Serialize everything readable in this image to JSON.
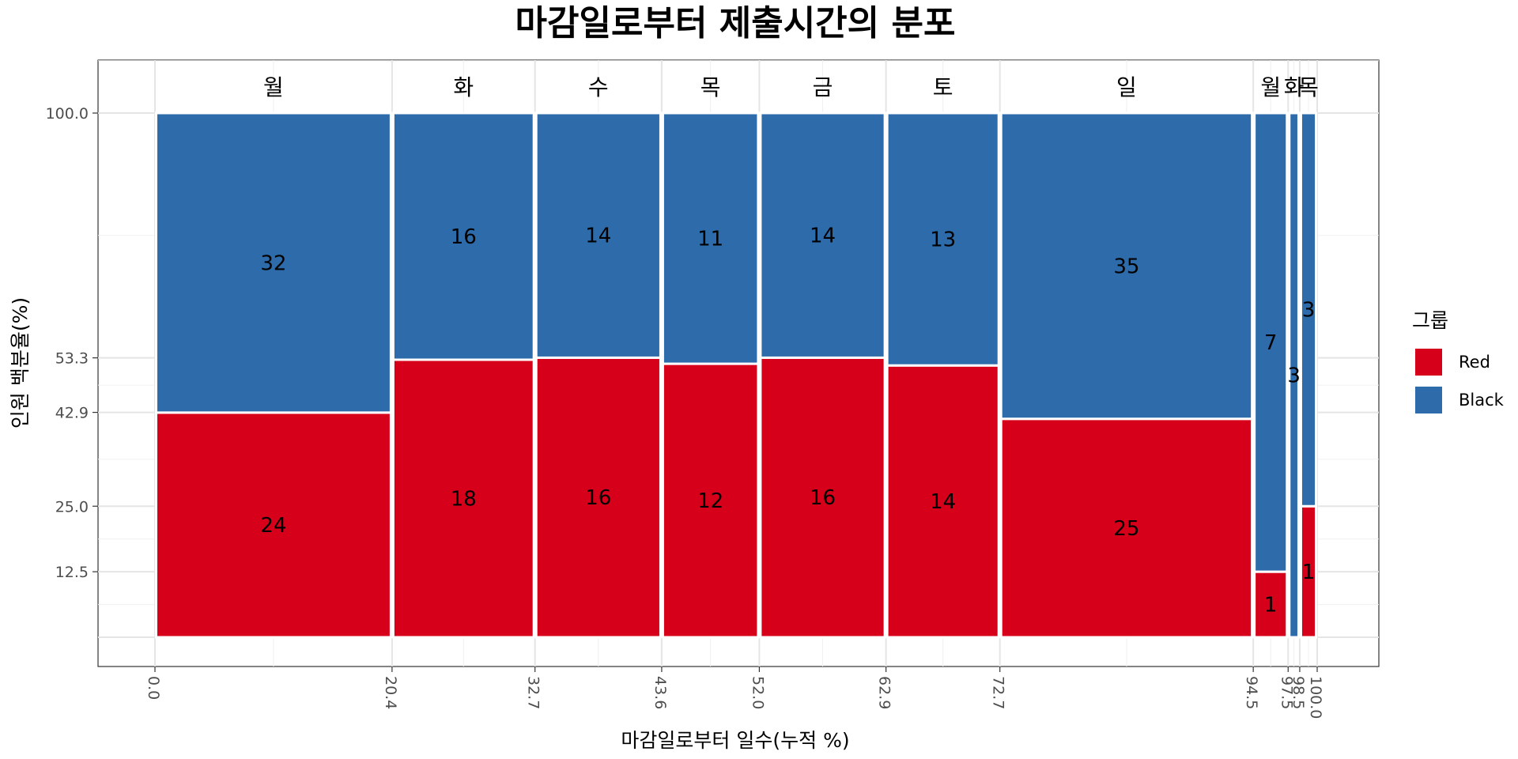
{
  "chart_data": {
    "type": "mosaic",
    "title": "마감일로부터 제출시간의 분포",
    "xlabel": "마감일로부터 일수(누적 %)",
    "ylabel": "인원 백분율(%)",
    "legend": {
      "title": "그룹",
      "position": "right",
      "entries": [
        {
          "name": "Red",
          "color": "#D7001A"
        },
        {
          "name": "Black",
          "color": "#2E6BAA"
        }
      ]
    },
    "x_ticks": [
      "0.0",
      "20.4",
      "32.7",
      "43.6",
      "52.0",
      "62.9",
      "72.7",
      "94.5",
      "97.5",
      "98.5",
      "100.0"
    ],
    "y_ticks": [
      "12.5",
      "25.0",
      "42.9",
      "53.3",
      "100.0"
    ],
    "xlim": [
      0,
      100
    ],
    "ylim": [
      0,
      100
    ],
    "grid": true,
    "columns": [
      {
        "label": "월",
        "x0": 0.0,
        "x1": 20.4,
        "red": 24,
        "black": 32
      },
      {
        "label": "화",
        "x0": 20.4,
        "x1": 32.7,
        "red": 18,
        "black": 16
      },
      {
        "label": "수",
        "x0": 32.7,
        "x1": 43.6,
        "red": 16,
        "black": 14
      },
      {
        "label": "목",
        "x0": 43.6,
        "x1": 52.0,
        "red": 12,
        "black": 11
      },
      {
        "label": "금",
        "x0": 52.0,
        "x1": 62.9,
        "red": 16,
        "black": 14
      },
      {
        "label": "토",
        "x0": 62.9,
        "x1": 72.7,
        "red": 14,
        "black": 13
      },
      {
        "label": "일",
        "x0": 72.7,
        "x1": 94.5,
        "red": 25,
        "black": 35
      },
      {
        "label": "월",
        "x0": 94.5,
        "x1": 97.5,
        "red": 1,
        "black": 7
      },
      {
        "label": "화",
        "x0": 97.5,
        "x1": 98.5,
        "red": 0,
        "black": 3
      },
      {
        "label": "목",
        "x0": 98.5,
        "x1": 100.0,
        "red": 1,
        "black": 3
      }
    ]
  }
}
